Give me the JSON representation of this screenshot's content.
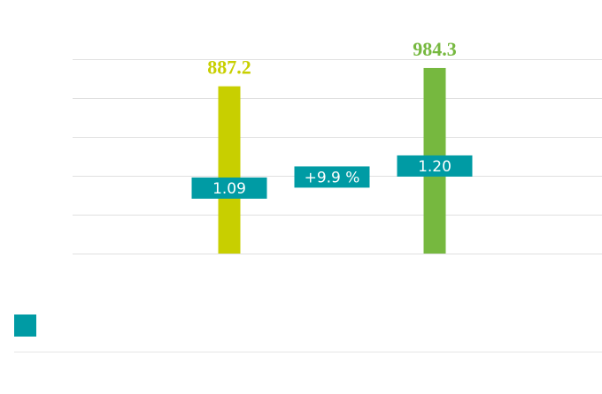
{
  "chart_data": {
    "type": "bar",
    "categories": [
      null,
      null
    ],
    "series": [
      {
        "colors": [
          "#c8cf00",
          "#76b83f"
        ],
        "values": [
          887.2,
          984.3
        ]
      },
      {
        "color": "#009ba4",
        "values": [
          1.09,
          1.2
        ],
        "value_labels": [
          "1.09",
          "1.20"
        ],
        "axis": "y2"
      }
    ],
    "annotation": "+9.9 %",
    "ylim": [
      0,
      1031
    ],
    "y2lim": [
      0.764,
      1.732
    ],
    "grid": true
  }
}
